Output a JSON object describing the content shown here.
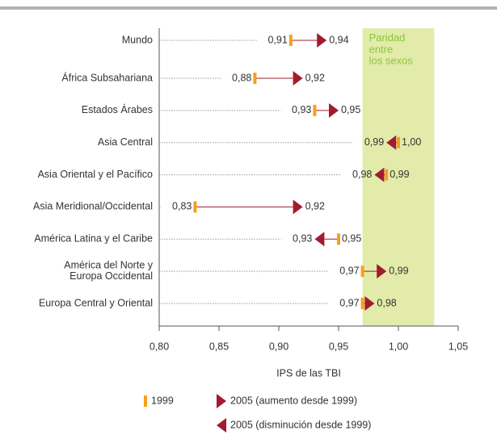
{
  "chart_data": {
    "type": "arrow-dumbbell",
    "categories": [
      "Mundo",
      "África Subsahariana",
      "Estados Árabes",
      "Asia Central",
      "Asia Oriental y el Pacífico",
      "Asia Meridional/Occidental",
      "América Latina y el Caribe",
      "América del Norte y\nEuropa Occidental",
      "Europa Central y Oriental"
    ],
    "series": [
      {
        "name": "1999",
        "color": "#f5a01a",
        "values": [
          0.91,
          0.88,
          0.93,
          1.0,
          0.99,
          0.83,
          0.95,
          0.97,
          0.97
        ],
        "value_labels": [
          "0,91",
          "0,88",
          "0,93",
          "1,00",
          "0,99",
          "0,83",
          "0,95",
          "0,97",
          "0,97"
        ]
      },
      {
        "name_increase": "2005 (aumento desde 1999)",
        "name_decrease": "2005 (disminución desde 1999)",
        "color": "#a31b2f",
        "values": [
          0.94,
          0.92,
          0.95,
          0.99,
          0.98,
          0.92,
          0.93,
          0.99,
          0.98
        ],
        "value_labels": [
          "0,94",
          "0,92",
          "0,95",
          "0,99",
          "0,98",
          "0,92",
          "0,93",
          "0,99",
          "0,98"
        ]
      }
    ],
    "xlim": [
      0.8,
      1.05
    ],
    "xticks": [
      {
        "value": 0.8,
        "label": "0,80"
      },
      {
        "value": 0.85,
        "label": "0,85"
      },
      {
        "value": 0.9,
        "label": "0,90"
      },
      {
        "value": 0.95,
        "label": "0,95"
      },
      {
        "value": 1.0,
        "label": "1,00"
      },
      {
        "value": 1.05,
        "label": "1,05"
      }
    ],
    "xlabel": "IPS de las TBI",
    "parity": {
      "text": "Paridad\nentre\nlos sexos",
      "range": [
        0.97,
        1.03
      ],
      "color": "#e2eba9",
      "text_color": "#8cc63f"
    }
  }
}
